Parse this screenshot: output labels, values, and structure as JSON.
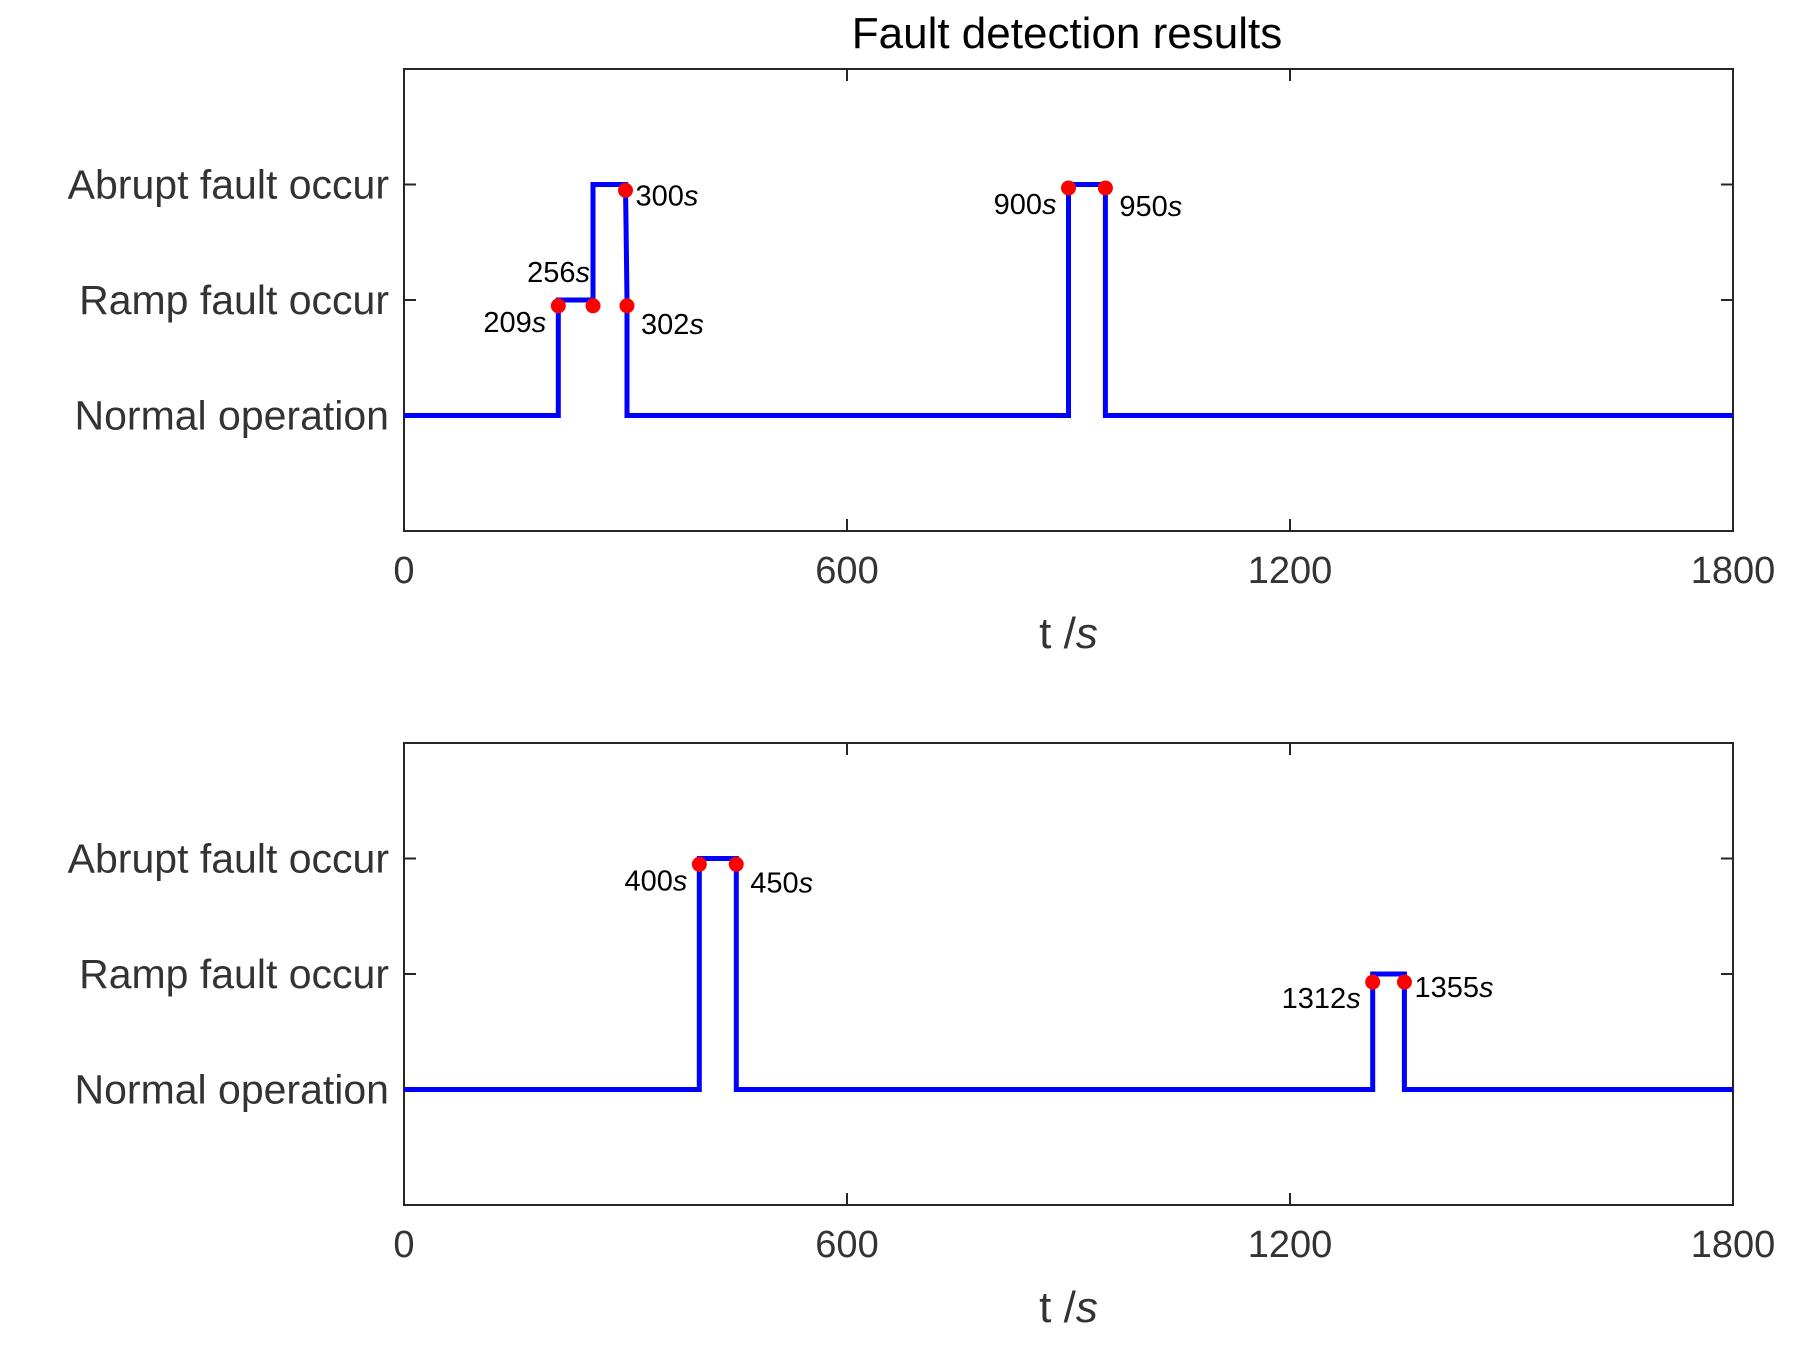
{
  "chart_data": [
    {
      "type": "line",
      "title": "Fault detection results",
      "xlabel": "t",
      "xlabel_unit": "s",
      "xlim": [
        0,
        1800
      ],
      "xticks": [
        0,
        600,
        1200,
        1800
      ],
      "ylim": [
        -1,
        3
      ],
      "yticks": [
        {
          "value": 0,
          "label": "Normal operation"
        },
        {
          "value": 1,
          "label": "Ramp fault occur"
        },
        {
          "value": 2,
          "label": "Abrupt fault occur"
        }
      ],
      "grid": false,
      "series": [
        {
          "color": "#0000ff",
          "x": [
            0,
            209,
            209,
            256,
            256,
            300,
            302,
            302,
            900,
            900,
            950,
            950,
            1800
          ],
          "y": [
            0,
            0,
            1,
            1,
            2,
            2,
            1,
            0,
            0,
            2,
            2,
            0,
            0
          ]
        }
      ],
      "markers": [
        {
          "x": 209,
          "y": 0.95,
          "label": "209",
          "unit": "s",
          "side": "below-left"
        },
        {
          "x": 256,
          "y": 0.95,
          "label": "256",
          "unit": "s",
          "side": "above-left"
        },
        {
          "x": 300,
          "y": 1.95,
          "label": "300",
          "unit": "s",
          "side": "right"
        },
        {
          "x": 302,
          "y": 0.95,
          "label": "302",
          "unit": "s",
          "side": "below-right"
        },
        {
          "x": 900,
          "y": 1.97,
          "label": "900",
          "unit": "s",
          "side": "below-left"
        },
        {
          "x": 950,
          "y": 1.97,
          "label": "950",
          "unit": "s",
          "side": "below-right"
        }
      ]
    },
    {
      "type": "line",
      "title": "",
      "xlabel": "t",
      "xlabel_unit": "s",
      "xlim": [
        0,
        1800
      ],
      "xticks": [
        0,
        600,
        1200,
        1800
      ],
      "ylim": [
        -1,
        3
      ],
      "yticks": [
        {
          "value": 0,
          "label": "Normal operation"
        },
        {
          "value": 1,
          "label": "Ramp fault occur"
        },
        {
          "value": 2,
          "label": "Abrupt fault occur"
        }
      ],
      "grid": false,
      "series": [
        {
          "color": "#0000ff",
          "x": [
            0,
            400,
            400,
            450,
            450,
            1312,
            1312,
            1355,
            1355,
            1800
          ],
          "y": [
            0,
            0,
            2,
            2,
            0,
            0,
            1,
            1,
            0,
            0
          ]
        }
      ],
      "markers": [
        {
          "x": 400,
          "y": 1.95,
          "label": "400",
          "unit": "s",
          "side": "below-left"
        },
        {
          "x": 450,
          "y": 1.95,
          "label": "450",
          "unit": "s",
          "side": "below-right"
        },
        {
          "x": 1312,
          "y": 0.93,
          "label": "1312",
          "unit": "s",
          "side": "below-left"
        },
        {
          "x": 1355,
          "y": 0.93,
          "label": "1355",
          "unit": "s",
          "side": "right"
        }
      ]
    }
  ],
  "marker_color": "#ff0000"
}
